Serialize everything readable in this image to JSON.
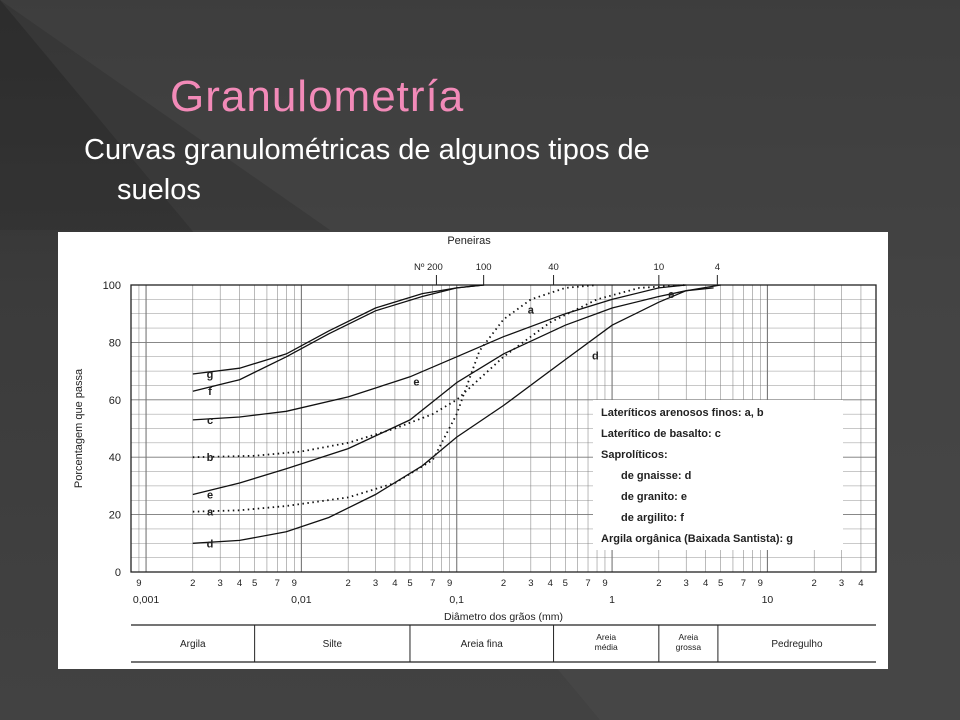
{
  "slide": {
    "title": "Granulometría",
    "subtitle_line1": "Curvas granulométricas de algunos tipos de",
    "subtitle_line2": "suelos"
  },
  "chart_data": {
    "type": "line",
    "title": "Peneiras",
    "xlabel": "Diâmetro dos grãos (mm)",
    "ylabel": "Porcentagem que passa",
    "xscale": "log",
    "xlim": [
      0.0008,
      50
    ],
    "ylim": [
      0,
      100
    ],
    "grid": true,
    "y_ticks": [
      "0",
      "20",
      "40",
      "60",
      "80",
      "100"
    ],
    "x_major_ticks": [
      {
        "value": 0.001,
        "label": "0,001"
      },
      {
        "value": 0.01,
        "label": "0,01"
      },
      {
        "value": 0.1,
        "label": "0,1"
      },
      {
        "value": 1,
        "label": "1"
      },
      {
        "value": 10,
        "label": "10"
      }
    ],
    "x_minor_labels": [
      "2",
      "3",
      "4",
      "5",
      "7",
      "9"
    ],
    "x_minor_values": [
      2,
      3,
      4,
      5,
      7,
      9
    ],
    "sieves": [
      {
        "label": "Nº 200",
        "value": 0.074
      },
      {
        "label": "100",
        "value": 0.149
      },
      {
        "label": "40",
        "value": 0.42
      },
      {
        "label": "10",
        "value": 2.0
      },
      {
        "label": "4",
        "value": 4.76
      }
    ],
    "legend_lines": [
      "Lateríticos arenosos finos:  a, b",
      "Laterítico de basalto:  c",
      "Saprolíticos:",
      "de gnaisse:  d",
      "de granito:  e",
      "de argilito:  f",
      "Argila orgânica (Baixada Santista):  g"
    ],
    "series": [
      {
        "name": "a",
        "dashed": true,
        "x": [
          0.002,
          0.004,
          0.008,
          0.02,
          0.04,
          0.07,
          0.1,
          0.14,
          0.2,
          0.3,
          0.5,
          0.8
        ],
        "y": [
          21,
          21.5,
          23,
          26,
          31,
          39,
          55,
          77,
          88,
          95,
          99,
          100
        ]
      },
      {
        "name": "b",
        "dashed": true,
        "x": [
          0.002,
          0.005,
          0.01,
          0.02,
          0.04,
          0.07,
          0.1,
          0.2,
          0.4,
          0.8,
          1.5,
          3
        ],
        "y": [
          40,
          40.5,
          42,
          45,
          50,
          55,
          60,
          75,
          87,
          95,
          99,
          100
        ]
      },
      {
        "name": "c",
        "x": [
          0.002,
          0.004,
          0.008,
          0.02,
          0.05,
          0.1,
          0.2,
          0.5,
          1,
          2,
          3
        ],
        "y": [
          53,
          54,
          56,
          61,
          68,
          75,
          82,
          90,
          95,
          99,
          100
        ]
      },
      {
        "name": "d",
        "x": [
          0.002,
          0.004,
          0.008,
          0.015,
          0.03,
          0.06,
          0.1,
          0.2,
          0.5,
          1,
          2,
          3,
          5
        ],
        "y": [
          10,
          11,
          14,
          19,
          27,
          37,
          47,
          58,
          74,
          86,
          94,
          98,
          100
        ]
      },
      {
        "name": "e",
        "x": [
          0.002,
          0.004,
          0.008,
          0.02,
          0.05,
          0.1,
          0.2,
          0.5,
          1,
          2,
          3,
          4.5
        ],
        "y": [
          27,
          31,
          36,
          43,
          53,
          66,
          76,
          86,
          92,
          96,
          98,
          99
        ]
      },
      {
        "name": "f",
        "x": [
          0.002,
          0.004,
          0.008,
          0.015,
          0.03,
          0.06,
          0.1,
          0.15
        ],
        "y": [
          63,
          67,
          75,
          83,
          91,
          96,
          99,
          100
        ]
      },
      {
        "name": "g",
        "x": [
          0.002,
          0.004,
          0.008,
          0.015,
          0.03,
          0.06,
          0.1,
          0.15
        ],
        "y": [
          69,
          71,
          76,
          84,
          92,
          97,
          99,
          100
        ]
      }
    ],
    "classes": [
      {
        "label": "Argila",
        "from": 0.0008,
        "to": 0.005
      },
      {
        "label": "Silte",
        "from": 0.005,
        "to": 0.05
      },
      {
        "label": "Areia fina",
        "from": 0.05,
        "to": 0.42
      },
      {
        "label": "Areia média",
        "line1": "Areia",
        "line2": "média",
        "from": 0.42,
        "to": 2
      },
      {
        "label": "Areia grossa",
        "line1": "Areia",
        "line2": "grossa",
        "from": 2,
        "to": 4.8
      },
      {
        "label": "Pedregulho",
        "from": 4.8,
        "to": 50
      }
    ]
  }
}
